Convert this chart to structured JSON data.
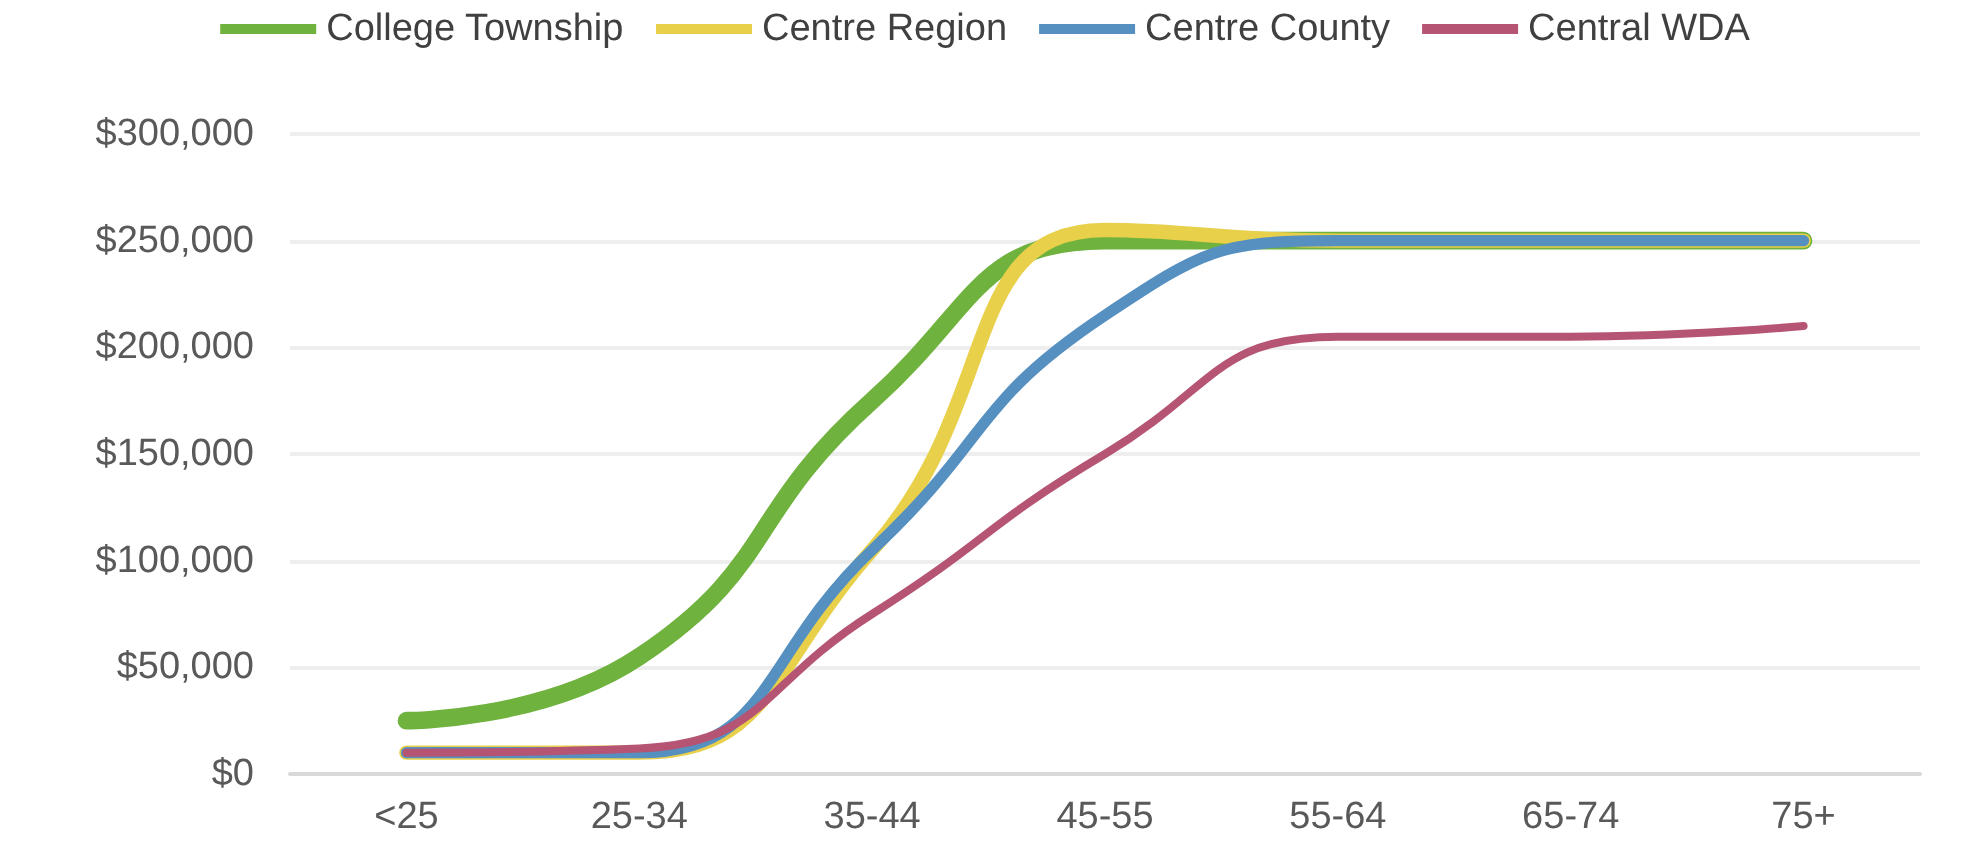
{
  "chart_data": {
    "type": "line",
    "categories": [
      "<25",
      "25-34",
      "35-44",
      "45-55",
      "55-64",
      "65-74",
      "75+"
    ],
    "series": [
      {
        "name": "College Township",
        "color": "#70b23e",
        "values": [
          25000,
          55000,
          175000,
          250000,
          250000,
          250000,
          250000
        ]
      },
      {
        "name": "Centre Region",
        "color": "#e8d04a",
        "values": [
          10000,
          10000,
          105000,
          255000,
          250000,
          250000,
          250000
        ]
      },
      {
        "name": "Centre County",
        "color": "#5590c0",
        "values": [
          10000,
          10000,
          105000,
          215000,
          250000,
          250000,
          250000
        ]
      },
      {
        "name": "Central WDA",
        "color": "#b55473",
        "values": [
          10000,
          12000,
          75000,
          150000,
          205000,
          205000,
          210000
        ]
      }
    ],
    "ylim": [
      0,
      300000
    ],
    "yticks": [
      {
        "value": 0,
        "label": "$0"
      },
      {
        "value": 50000,
        "label": "$50,000"
      },
      {
        "value": 100000,
        "label": "$100,000"
      },
      {
        "value": 150000,
        "label": "$150,000"
      },
      {
        "value": 200000,
        "label": "$200,000"
      },
      {
        "value": 250000,
        "label": "$250,000"
      },
      {
        "value": 300000,
        "label": "$300,000"
      }
    ],
    "grid": "y",
    "legend": "top",
    "marker": "none",
    "line_style": "solid"
  }
}
